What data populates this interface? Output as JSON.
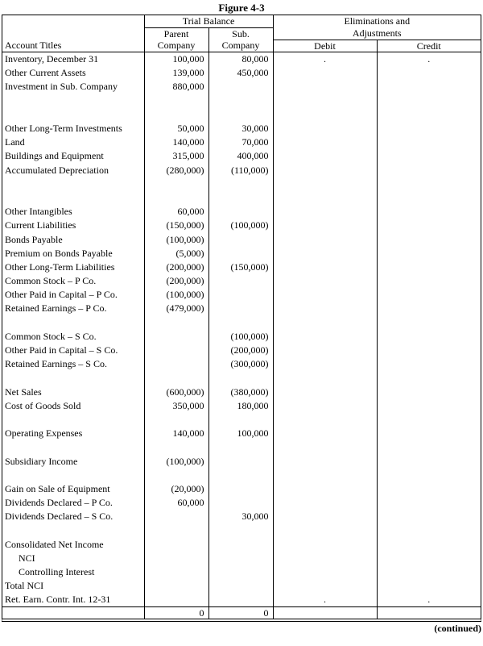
{
  "figure_title": "Figure 4-3",
  "footer_note": "(continued)",
  "table": {
    "header": {
      "account_titles": "Account Titles",
      "trial_balance": "Trial Balance",
      "parent_line1": "Parent",
      "parent_line2": "Company",
      "sub_line1": "Sub.",
      "sub_line2": "Company",
      "elim_line1": "Eliminations and",
      "elim_line2": "Adjustments",
      "debit": "Debit",
      "credit": "Credit"
    },
    "rows": [
      {
        "title": "Inventory, December 31",
        "parent": "100,000",
        "sub": "80,000",
        "debit": ".",
        "credit": "."
      },
      {
        "title": "Other Current Assets",
        "parent": "139,000",
        "sub": "450,000",
        "debit": "",
        "credit": ""
      },
      {
        "title": "Investment in Sub. Company",
        "parent": "880,000",
        "sub": "",
        "debit": "",
        "credit": ""
      },
      {
        "title": "",
        "parent": "",
        "sub": "",
        "debit": "",
        "credit": ""
      },
      {
        "title": "",
        "parent": "",
        "sub": "",
        "debit": "",
        "credit": ""
      },
      {
        "title": "Other Long-Term Investments",
        "parent": "50,000",
        "sub": "30,000",
        "debit": "",
        "credit": ""
      },
      {
        "title": "Land",
        "parent": "140,000",
        "sub": "70,000",
        "debit": "",
        "credit": ""
      },
      {
        "title": "Buildings and Equipment",
        "parent": "315,000",
        "sub": "400,000",
        "debit": "",
        "credit": ""
      },
      {
        "title": "Accumulated Depreciation",
        "parent": "(280,000)",
        "sub": "(110,000)",
        "debit": "",
        "credit": ""
      },
      {
        "title": "",
        "parent": "",
        "sub": "",
        "debit": "",
        "credit": ""
      },
      {
        "title": "",
        "parent": "",
        "sub": "",
        "debit": "",
        "credit": ""
      },
      {
        "title": "Other Intangibles",
        "parent": "60,000",
        "sub": "",
        "debit": "",
        "credit": ""
      },
      {
        "title": "Current Liabilities",
        "parent": "(150,000)",
        "sub": "(100,000)",
        "debit": "",
        "credit": ""
      },
      {
        "title": "Bonds Payable",
        "parent": "(100,000)",
        "sub": "",
        "debit": "",
        "credit": ""
      },
      {
        "title": "Premium on Bonds Payable",
        "parent": "(5,000)",
        "sub": "",
        "debit": "",
        "credit": ""
      },
      {
        "title": "Other Long-Term Liabilities",
        "parent": "(200,000)",
        "sub": "(150,000)",
        "debit": "",
        "credit": ""
      },
      {
        "title": "Common Stock – P Co.",
        "parent": "(200,000)",
        "sub": "",
        "debit": "",
        "credit": ""
      },
      {
        "title": "Other Paid in Capital – P Co.",
        "parent": "(100,000)",
        "sub": "",
        "debit": "",
        "credit": ""
      },
      {
        "title": "Retained Earnings – P Co.",
        "parent": "(479,000)",
        "sub": "",
        "debit": "",
        "credit": ""
      },
      {
        "title": "",
        "parent": "",
        "sub": "",
        "debit": "",
        "credit": ""
      },
      {
        "title": "Common Stock – S Co.",
        "parent": "",
        "sub": "(100,000)",
        "debit": "",
        "credit": ""
      },
      {
        "title": "Other Paid in Capital – S Co.",
        "parent": "",
        "sub": "(200,000)",
        "debit": "",
        "credit": ""
      },
      {
        "title": "Retained Earnings – S Co.",
        "parent": "",
        "sub": "(300,000)",
        "debit": "",
        "credit": ""
      },
      {
        "title": "",
        "parent": "",
        "sub": "",
        "debit": "",
        "credit": ""
      },
      {
        "title": "Net Sales",
        "parent": "(600,000)",
        "sub": "(380,000)",
        "debit": "",
        "credit": ""
      },
      {
        "title": "Cost of Goods Sold",
        "parent": "350,000",
        "sub": "180,000",
        "debit": "",
        "credit": ""
      },
      {
        "title": "",
        "parent": "",
        "sub": "",
        "debit": "",
        "credit": ""
      },
      {
        "title": "Operating Expenses",
        "parent": "140,000",
        "sub": "100,000",
        "debit": "",
        "credit": ""
      },
      {
        "title": "",
        "parent": "",
        "sub": "",
        "debit": "",
        "credit": ""
      },
      {
        "title": "Subsidiary Income",
        "parent": "(100,000)",
        "sub": "",
        "debit": "",
        "credit": ""
      },
      {
        "title": "",
        "parent": "",
        "sub": "",
        "debit": "",
        "credit": ""
      },
      {
        "title": "Gain on Sale of Equipment",
        "parent": "(20,000)",
        "sub": "",
        "debit": "",
        "credit": ""
      },
      {
        "title": "Dividends Declared – P Co.",
        "parent": "60,000",
        "sub": "",
        "debit": "",
        "credit": ""
      },
      {
        "title": "Dividends Declared – S Co.",
        "parent": "",
        "sub": "30,000",
        "debit": "",
        "credit": ""
      },
      {
        "title": "",
        "parent": "",
        "sub": "",
        "debit": "",
        "credit": ""
      },
      {
        "title": "Consolidated Net Income",
        "parent": "",
        "sub": "",
        "debit": "",
        "credit": ""
      },
      {
        "title": "NCI",
        "indent": true,
        "parent": "",
        "sub": "",
        "debit": "",
        "credit": ""
      },
      {
        "title": "Controlling Interest",
        "indent": true,
        "parent": "",
        "sub": "",
        "debit": "",
        "credit": ""
      },
      {
        "title": "Total NCI",
        "parent": "",
        "sub": "",
        "debit": "",
        "credit": ""
      },
      {
        "title": "Ret. Earn. Contr. Int. 12-31",
        "parent": "",
        "sub": "",
        "debit": ".",
        "credit": "."
      }
    ],
    "total_row": {
      "parent": "0",
      "sub": "0"
    }
  }
}
